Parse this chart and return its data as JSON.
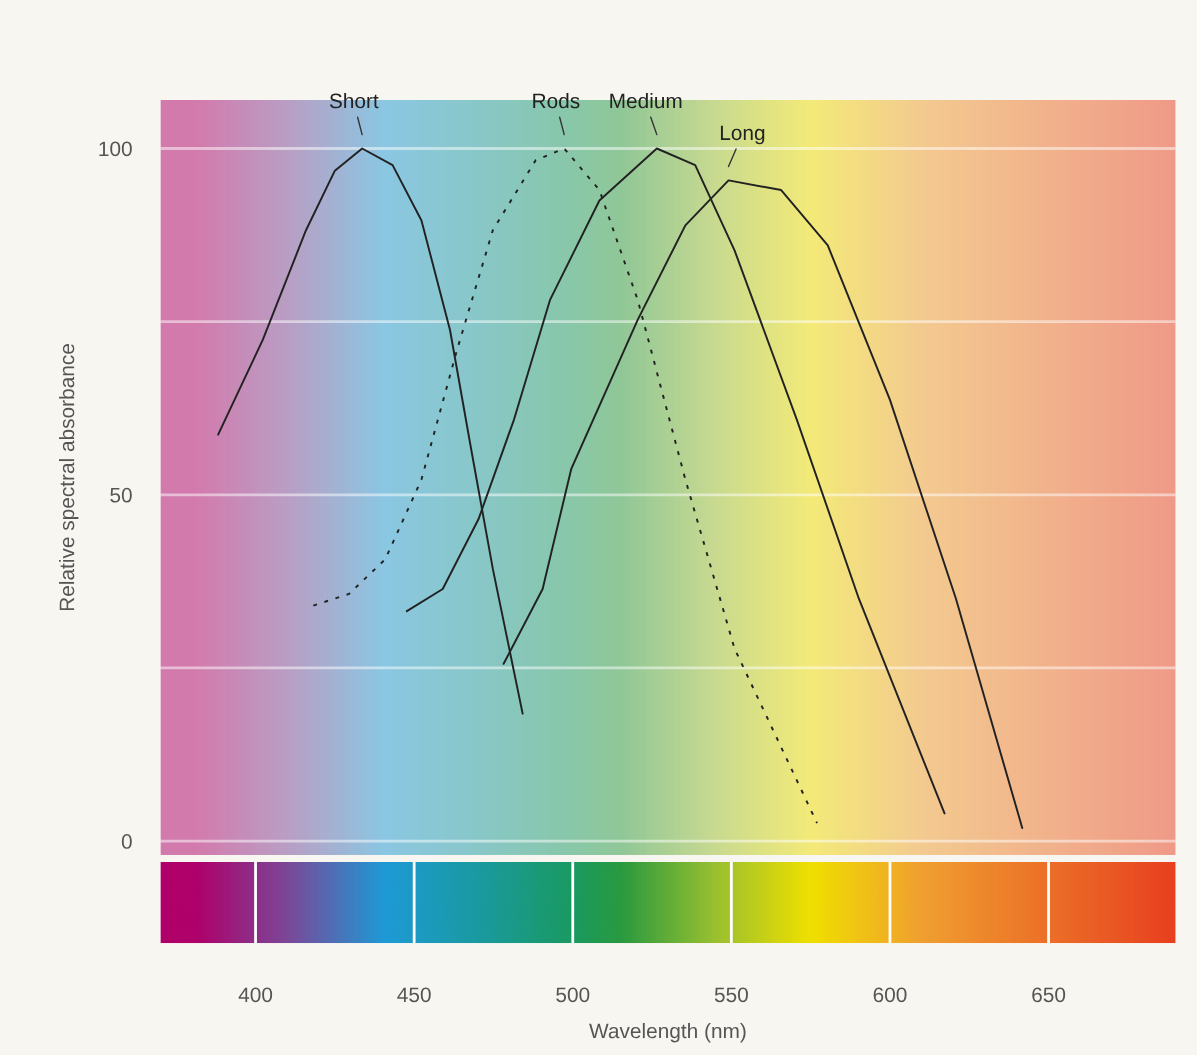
{
  "chart_data": {
    "type": "line",
    "xlabel": "Wavelength (nm)",
    "ylabel": "Relative spectral absorbance",
    "xlim": [
      370,
      690
    ],
    "xticks": [
      400,
      450,
      500,
      550,
      600,
      650
    ],
    "ylim": [
      -2,
      107
    ],
    "yticks": [
      0,
      {
        "value": 25,
        "label": null
      },
      50,
      {
        "value": 75,
        "label": null
      },
      100
    ],
    "grid": "y",
    "marker": "none",
    "series": [
      {
        "name": "Short",
        "color": "#222222",
        "line_style": "solid",
        "x": [
          388.2,
          402.3,
          415.9,
          425,
          433.6,
          443.2,
          452.3,
          461.3,
          468,
          474.8,
          484.2
        ],
        "values": [
          58.7,
          72.4,
          88.2,
          96.8,
          100,
          97.6,
          89.6,
          73.8,
          56.5,
          39.3,
          18.4
        ]
      },
      {
        "name": "Rods",
        "color": "#222222",
        "line_style": "dashed",
        "x": [
          418.2,
          429.5,
          440.9,
          452.3,
          463.5,
          474.8,
          488.3,
          497.3,
          508.4,
          520.5,
          535.5,
          551,
          577
        ],
        "values": [
          34.0,
          35.7,
          40.7,
          52.2,
          70.9,
          88.2,
          98.3,
          100,
          94.0,
          78.1,
          52.2,
          27.8,
          2.6
        ]
      },
      {
        "name": "Medium",
        "color": "#222222",
        "line_style": "solid",
        "x": [
          447.7,
          459,
          470.3,
          481.5,
          492.8,
          508.4,
          526.5,
          538.6,
          551,
          570.6,
          590.2,
          617.2
        ],
        "values": [
          33.2,
          36.4,
          46.5,
          60.9,
          78.1,
          92.5,
          100,
          97.6,
          85.3,
          60.9,
          35.0,
          4.0
        ]
      },
      {
        "name": "Long",
        "color": "#222222",
        "line_style": "solid",
        "x": [
          478.2,
          490.5,
          499.5,
          520.5,
          535.5,
          549.1,
          565.7,
          580.4,
          600,
          620.8,
          641.7
        ],
        "values": [
          25.6,
          36.4,
          53.7,
          75.3,
          88.9,
          95.4,
          94.0,
          86.0,
          63.7,
          35.0,
          1.9
        ]
      }
    ]
  }
}
